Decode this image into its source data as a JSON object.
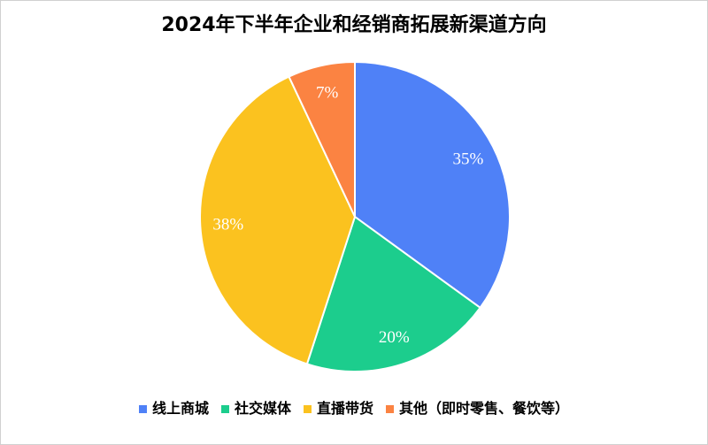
{
  "chart_data": {
    "type": "pie",
    "title": "2024年下半年企业和经销商拓展新渠道方向",
    "legend_position": "bottom",
    "slices": [
      {
        "name": "线上商城",
        "value": 35,
        "label": "35%",
        "color": "#4f81f7"
      },
      {
        "name": "社交媒体",
        "value": 20,
        "label": "20%",
        "color": "#1ccd8d"
      },
      {
        "name": "直播带货",
        "value": 38,
        "label": "38%",
        "color": "#fbc21f"
      },
      {
        "name": "其他（即时零售、餐饮等）",
        "value": 7,
        "label": "7%",
        "color": "#fb8342"
      }
    ]
  }
}
